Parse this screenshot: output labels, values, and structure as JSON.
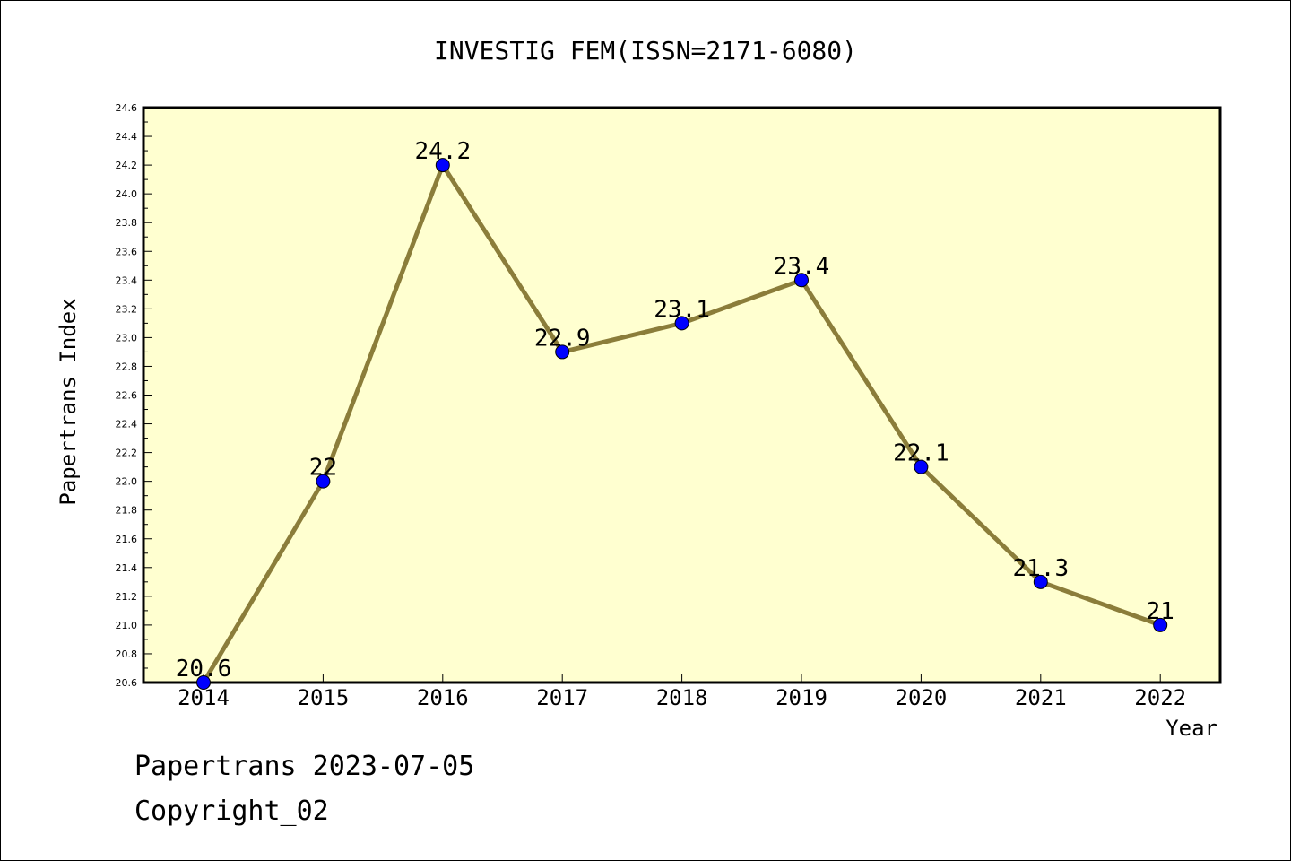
{
  "chart_data": {
    "type": "line",
    "title": "INVESTIG FEM(ISSN=2171-6080)",
    "xlabel": "Year",
    "ylabel": "Papertrans Index",
    "categories": [
      "2014",
      "2015",
      "2016",
      "2017",
      "2018",
      "2019",
      "2020",
      "2021",
      "2022"
    ],
    "series": [
      {
        "values": [
          20.6,
          22,
          24.2,
          22.9,
          23.1,
          23.4,
          22.1,
          21.3,
          21
        ],
        "labels": [
          "20.6",
          "22",
          "24.2",
          "22.9",
          "23.1",
          "23.4",
          "22.1",
          "21.3",
          "21"
        ]
      }
    ],
    "ylim": [
      20.6,
      24.6
    ],
    "yticks": [
      "20.6",
      "20.8",
      "21.0",
      "21.2",
      "21.4",
      "21.6",
      "21.8",
      "22.0",
      "22.2",
      "22.4",
      "22.6",
      "22.8",
      "23.0",
      "23.2",
      "23.4",
      "23.6",
      "23.8",
      "24.0",
      "24.2",
      "24.4",
      "24.6"
    ],
    "grid": false,
    "colors": {
      "plot_background": "#ffffd0",
      "line": "#8b7d3a",
      "marker": "#0000ff"
    }
  },
  "footer": {
    "line1": "Papertrans 2023-07-05",
    "line2": "Copyright_02"
  }
}
